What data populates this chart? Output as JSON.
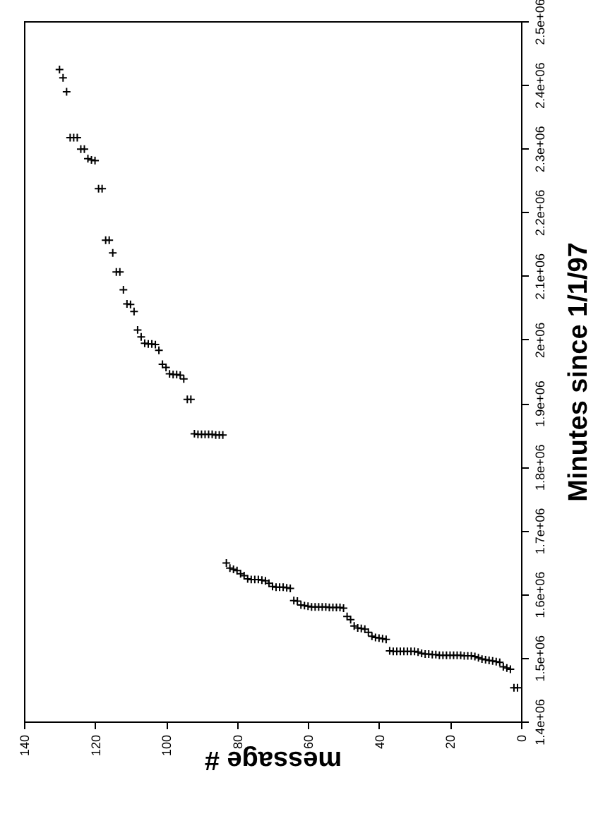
{
  "chart_data": {
    "type": "scatter",
    "xlabel": "message #",
    "ylabel": "Minutes since 1/1/97",
    "color": "#000000",
    "marker": "cross",
    "grid": false,
    "xlim": [
      140,
      0
    ],
    "xticks": [
      0,
      20,
      40,
      60,
      80,
      100,
      120,
      140
    ],
    "ylim": [
      1400000,
      2500000
    ],
    "yticks": [
      {
        "value": 1400000,
        "label": "1.4e+06"
      },
      {
        "value": 1500000,
        "label": "1.5e+06"
      },
      {
        "value": 1600000,
        "label": "1.6e+06"
      },
      {
        "value": 1700000,
        "label": "1.7e+06"
      },
      {
        "value": 1800000,
        "label": "1.8e+06"
      },
      {
        "value": 1900000,
        "label": "1.9e+06"
      },
      {
        "value": 2000000,
        "label": "2e+06"
      },
      {
        "value": 2100000,
        "label": "2.1e+06"
      },
      {
        "value": 2200000,
        "label": "2.2e+06"
      },
      {
        "value": 2300000,
        "label": "2.3e+06"
      },
      {
        "value": 2400000,
        "label": "2.4e+06"
      },
      {
        "value": 2500000,
        "label": "2.5e+06"
      }
    ],
    "x": [
      1,
      2,
      3,
      4,
      5,
      6,
      7,
      8,
      9,
      10,
      11,
      12,
      13,
      14,
      15,
      16,
      17,
      18,
      19,
      20,
      21,
      22,
      23,
      24,
      25,
      26,
      27,
      28,
      29,
      30,
      31,
      32,
      33,
      34,
      35,
      36,
      37,
      38,
      39,
      40,
      41,
      42,
      43,
      44,
      45,
      46,
      47,
      48,
      49,
      50,
      51,
      52,
      53,
      54,
      55,
      56,
      57,
      58,
      59,
      60,
      61,
      62,
      63,
      64,
      65,
      66,
      67,
      68,
      69,
      70,
      71,
      72,
      73,
      74,
      75,
      76,
      77,
      78,
      79,
      80,
      81,
      82,
      83,
      84,
      85,
      86,
      87,
      88,
      89,
      90,
      91,
      92,
      93,
      94,
      95,
      96,
      97,
      98,
      99,
      100,
      101,
      102,
      103,
      104,
      105,
      106,
      107,
      108,
      109,
      110,
      111,
      112,
      113,
      114,
      115,
      116,
      117,
      118,
      119,
      120,
      121,
      122,
      123,
      124,
      125,
      126,
      127,
      128,
      129,
      130
    ],
    "values": [
      1453000,
      1453000,
      1482000,
      1484000,
      1486000,
      1493000,
      1494000,
      1495000,
      1496000,
      1497000,
      1498000,
      1500000,
      1502000,
      1503000,
      1503000,
      1503000,
      1504000,
      1504000,
      1504000,
      1504000,
      1504000,
      1504000,
      1504000,
      1505000,
      1505000,
      1506000,
      1506000,
      1507000,
      1509000,
      1510000,
      1510000,
      1510000,
      1510000,
      1510000,
      1510000,
      1510000,
      1511000,
      1529000,
      1530000,
      1531000,
      1532000,
      1534000,
      1540000,
      1545000,
      1546000,
      1547000,
      1550000,
      1560000,
      1565000,
      1578000,
      1579000,
      1579000,
      1579000,
      1579000,
      1580000,
      1580000,
      1580000,
      1580000,
      1580000,
      1581000,
      1582000,
      1583000,
      1589000,
      1590000,
      1609000,
      1610000,
      1611000,
      1611000,
      1611000,
      1612000,
      1617000,
      1621000,
      1622000,
      1623000,
      1623000,
      1623000,
      1624000,
      1629000,
      1632000,
      1637000,
      1639000,
      1641000,
      1649000,
      1850000,
      1850000,
      1850000,
      1851000,
      1851000,
      1851000,
      1851000,
      1851000,
      1852000,
      1906000,
      1906000,
      1938000,
      1944000,
      1945000,
      1945000,
      1946000,
      1956000,
      1961000,
      1983000,
      1992000,
      1993000,
      1993000,
      1994000,
      2004000,
      2015000,
      2044000,
      2055000,
      2056000,
      2078000,
      2106000,
      2106000,
      2136000,
      2156000,
      2156000,
      2237000,
      2237000,
      2281000,
      2282000,
      2284000,
      2299000,
      2299000,
      2317000,
      2317000,
      2317000,
      2389000,
      2411000,
      2424000
    ]
  }
}
